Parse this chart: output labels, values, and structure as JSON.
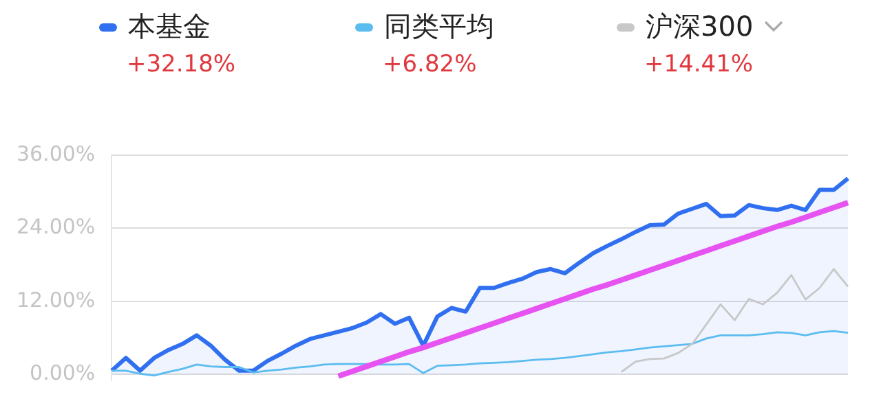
{
  "chart_data": {
    "type": "line",
    "categories": [
      null,
      null,
      null,
      null,
      null,
      null,
      null,
      null,
      null,
      null,
      null,
      null,
      null,
      null,
      null,
      null,
      null,
      null,
      null,
      null,
      null,
      null,
      null,
      null,
      null,
      null,
      null,
      null,
      null,
      null,
      null,
      null,
      null,
      null,
      null,
      null,
      null,
      null,
      null,
      null,
      null,
      null,
      null,
      null,
      null,
      null,
      null,
      null,
      null,
      null,
      null,
      null,
      null
    ],
    "series": [
      {
        "name": "本基金",
        "type": "area",
        "color": "#2f6ff0",
        "values": [
          0.6,
          2.7,
          0.6,
          2.7,
          4.0,
          5.0,
          6.4,
          4.7,
          2.4,
          0.6,
          0.6,
          2.2,
          3.4,
          4.7,
          5.8,
          6.4,
          7.0,
          7.6,
          8.5,
          9.9,
          8.3,
          9.3,
          4.7,
          9.5,
          10.9,
          10.3,
          14.2,
          14.2,
          15.0,
          15.7,
          16.8,
          17.3,
          16.6,
          18.3,
          19.9,
          21.1,
          22.2,
          23.4,
          24.5,
          24.6,
          26.4,
          27.2,
          28.0,
          26.0,
          26.1,
          27.8,
          27.3,
          27.0,
          27.7,
          27.0,
          30.3,
          30.3,
          32.18
        ]
      },
      {
        "name": "同类平均",
        "color": "#5bbcf0",
        "values": [
          0.6,
          0.6,
          0.1,
          -0.2,
          0.4,
          0.9,
          1.6,
          1.3,
          1.2,
          1.2,
          0.3,
          0.6,
          0.8,
          1.1,
          1.3,
          1.6,
          1.7,
          1.7,
          1.7,
          1.6,
          1.6,
          1.7,
          0.2,
          1.4,
          1.5,
          1.6,
          1.8,
          1.9,
          2.0,
          2.2,
          2.4,
          2.5,
          2.7,
          3.0,
          3.3,
          3.6,
          3.8,
          4.1,
          4.4,
          4.6,
          4.8,
          5.0,
          5.9,
          6.4,
          6.4,
          6.4,
          6.6,
          6.9,
          6.8,
          6.4,
          6.9,
          7.1,
          6.82
        ]
      },
      {
        "name": "沪深300",
        "color": "#c8c8c8",
        "values": [
          null,
          null,
          null,
          null,
          null,
          null,
          null,
          null,
          null,
          null,
          null,
          null,
          null,
          null,
          null,
          null,
          null,
          null,
          null,
          null,
          null,
          null,
          null,
          null,
          null,
          null,
          null,
          null,
          null,
          null,
          null,
          null,
          null,
          null,
          null,
          null,
          0.4,
          2.1,
          2.5,
          2.6,
          3.5,
          5.0,
          8.2,
          11.5,
          8.9,
          12.4,
          11.5,
          13.4,
          16.3,
          12.3,
          14.2,
          17.3,
          14.41
        ]
      },
      {
        "type": "line",
        "color": "#e653f0",
        "values": [
          null,
          null,
          null,
          null,
          null,
          null,
          null,
          null,
          null,
          null,
          null,
          null,
          null,
          null,
          null,
          null,
          -0.3,
          0.5,
          1.3,
          2.1,
          2.9,
          3.7,
          4.4,
          5.2,
          6.0,
          6.8,
          7.6,
          8.4,
          9.2,
          10.0,
          10.8,
          11.6,
          12.4,
          13.2,
          14.0,
          14.7,
          15.5,
          16.3,
          17.1,
          17.9,
          18.7,
          19.5,
          20.3,
          21.1,
          21.9,
          22.7,
          23.5,
          24.3,
          25.0,
          25.8,
          26.6,
          27.4,
          28.2
        ]
      }
    ],
    "annotations": [
      "+32.18%",
      "+6.82%",
      "+14.41%"
    ],
    "ylim": [
      -1,
      36
    ],
    "yticks": [
      {
        "value": 0,
        "label": "0.00%"
      },
      {
        "value": 12,
        "label": "12.00%"
      },
      {
        "value": 24,
        "label": "24.00%"
      },
      {
        "value": 36,
        "label": "36.00%"
      }
    ],
    "tick_labels": "y",
    "grid": "y",
    "legend": "top",
    "marker": "none"
  }
}
